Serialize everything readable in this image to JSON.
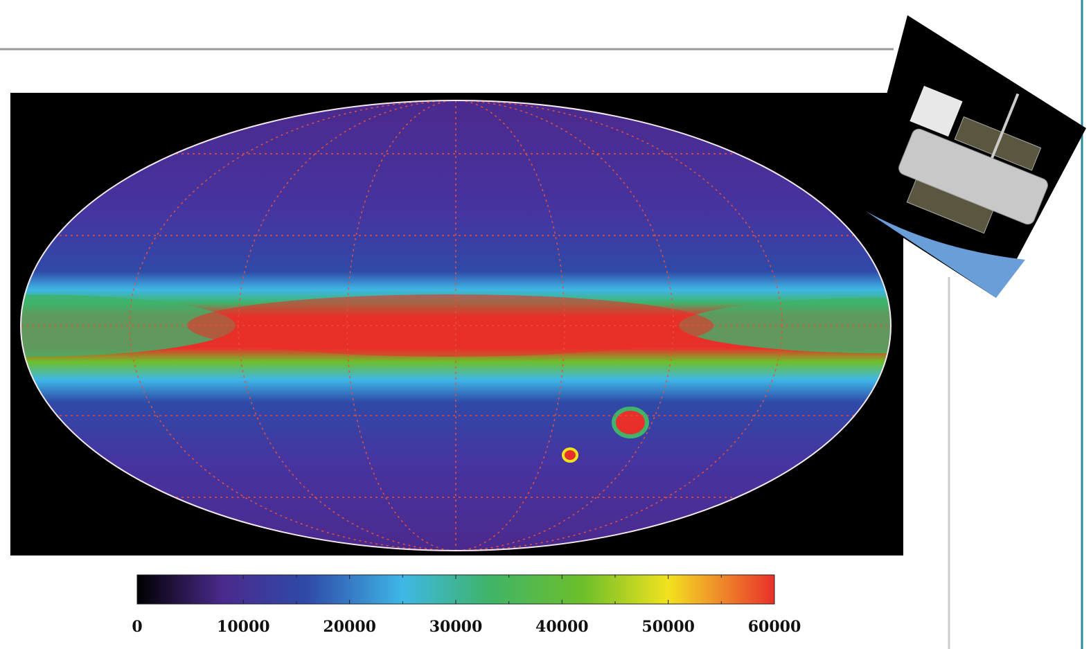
{
  "colorbar": {
    "range": [
      0,
      60000
    ],
    "ticks": [
      0,
      10000,
      20000,
      30000,
      40000,
      50000,
      60000
    ],
    "minor_ticks": [
      5000,
      15000,
      25000,
      35000,
      45000,
      55000
    ],
    "stops": [
      {
        "value": 0,
        "color": "#000000"
      },
      {
        "value": 8000,
        "color": "#4a2a8c"
      },
      {
        "value": 16000,
        "color": "#2f4aa8"
      },
      {
        "value": 25000,
        "color": "#3fb7e6"
      },
      {
        "value": 33000,
        "color": "#3fb36a"
      },
      {
        "value": 42000,
        "color": "#6dbf2a"
      },
      {
        "value": 50000,
        "color": "#f2e21e"
      },
      {
        "value": 54000,
        "color": "#f09a2a"
      },
      {
        "value": 60000,
        "color": "#e8302a"
      }
    ]
  }
}
